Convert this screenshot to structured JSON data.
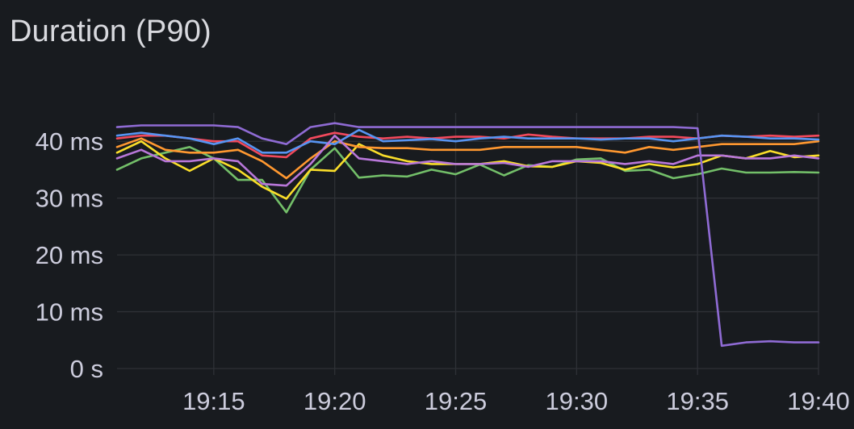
{
  "panel": {
    "title": "Duration (P90)"
  },
  "chart_data": {
    "type": "line",
    "title": "Duration (P90)",
    "xlabel": "",
    "ylabel": "",
    "grid": true,
    "legend": "none",
    "x_unit": "minutes",
    "x_range": [
      "19:11",
      "19:40"
    ],
    "ylim": [
      0,
      45
    ],
    "x_ticks": [
      {
        "x": "19:15",
        "label": "19:15"
      },
      {
        "x": "19:20",
        "label": "19:20"
      },
      {
        "x": "19:25",
        "label": "19:25"
      },
      {
        "x": "19:30",
        "label": "19:30"
      },
      {
        "x": "19:35",
        "label": "19:35"
      },
      {
        "x": "19:40",
        "label": "19:40"
      }
    ],
    "y_ticks": [
      {
        "value": 0,
        "label": "0 s"
      },
      {
        "value": 10,
        "label": "10 ms"
      },
      {
        "value": 20,
        "label": "20 ms"
      },
      {
        "value": 30,
        "label": "30 ms"
      },
      {
        "value": 40,
        "label": "40 ms"
      }
    ],
    "x": [
      "19:11",
      "19:12",
      "19:13",
      "19:14",
      "19:15",
      "19:16",
      "19:17",
      "19:18",
      "19:19",
      "19:20",
      "19:21",
      "19:22",
      "19:23",
      "19:24",
      "19:25",
      "19:26",
      "19:27",
      "19:28",
      "19:29",
      "19:30",
      "19:31",
      "19:32",
      "19:33",
      "19:34",
      "19:35",
      "19:36",
      "19:37",
      "19:38",
      "19:39",
      "19:40"
    ],
    "series": [
      {
        "color": "#73bf69",
        "values": [
          35.0,
          37.0,
          38.0,
          39.0,
          37.0,
          33.2,
          33.2,
          27.5,
          35.0,
          38.8,
          33.6,
          34.0,
          33.8,
          35.0,
          34.2,
          35.9,
          34.0,
          35.8,
          35.5,
          36.8,
          37.0,
          34.8,
          35.0,
          33.5,
          34.2,
          35.2,
          34.5,
          34.5,
          34.6,
          34.5
        ]
      },
      {
        "color": "#fade2a",
        "values": [
          38.0,
          40.0,
          37.0,
          34.8,
          37.0,
          35.0,
          32.0,
          29.9,
          35.0,
          34.8,
          39.5,
          37.5,
          36.5,
          36.0,
          36.0,
          36.0,
          36.5,
          35.6,
          35.5,
          36.5,
          36.2,
          35.0,
          36.0,
          35.4,
          36.0,
          37.5,
          37.0,
          38.3,
          37.2,
          37.5
        ]
      },
      {
        "color": "#ff9830",
        "values": [
          39.0,
          40.5,
          38.5,
          38.0,
          38.0,
          38.5,
          36.5,
          33.5,
          37.0,
          40.0,
          39.0,
          38.8,
          38.8,
          38.5,
          38.5,
          38.5,
          39.0,
          39.0,
          39.0,
          39.0,
          38.5,
          38.0,
          39.0,
          38.5,
          39.0,
          39.5,
          39.5,
          39.5,
          39.5,
          40.0
        ]
      },
      {
        "color": "#f2495c",
        "values": [
          40.5,
          41.0,
          41.0,
          40.5,
          40.0,
          40.0,
          37.5,
          37.2,
          40.5,
          41.5,
          40.8,
          40.5,
          40.8,
          40.5,
          40.8,
          40.8,
          40.5,
          41.2,
          40.8,
          40.5,
          40.5,
          40.5,
          40.8,
          40.8,
          40.5,
          41.0,
          40.8,
          41.0,
          40.8,
          41.0
        ]
      },
      {
        "color": "#5794f2",
        "values": [
          41.0,
          41.5,
          41.0,
          40.5,
          39.5,
          40.5,
          38.0,
          38.0,
          40.0,
          39.5,
          42.0,
          40.0,
          40.2,
          40.4,
          40.0,
          40.5,
          40.8,
          40.5,
          40.5,
          40.5,
          40.3,
          40.5,
          40.5,
          40.0,
          40.5,
          41.0,
          40.8,
          40.5,
          40.5,
          40.3
        ]
      },
      {
        "color": "#b877d9",
        "values": [
          37.0,
          38.5,
          36.5,
          36.5,
          37.0,
          36.5,
          32.5,
          32.2,
          36.0,
          41.0,
          37.0,
          36.5,
          36.0,
          36.5,
          36.0,
          36.0,
          36.2,
          35.5,
          36.5,
          36.5,
          36.5,
          36.0,
          36.5,
          36.0,
          37.5,
          37.5,
          37.0,
          37.0,
          37.5,
          37.0
        ]
      },
      {
        "color": "#8f6bd4",
        "values": [
          42.5,
          42.8,
          42.8,
          42.8,
          42.8,
          42.5,
          40.5,
          39.5,
          42.5,
          43.2,
          42.5,
          42.5,
          42.5,
          42.5,
          42.5,
          42.5,
          42.5,
          42.5,
          42.5,
          42.5,
          42.5,
          42.5,
          42.5,
          42.5,
          42.3,
          4.0,
          4.6,
          4.8,
          4.6,
          4.6
        ]
      }
    ]
  }
}
